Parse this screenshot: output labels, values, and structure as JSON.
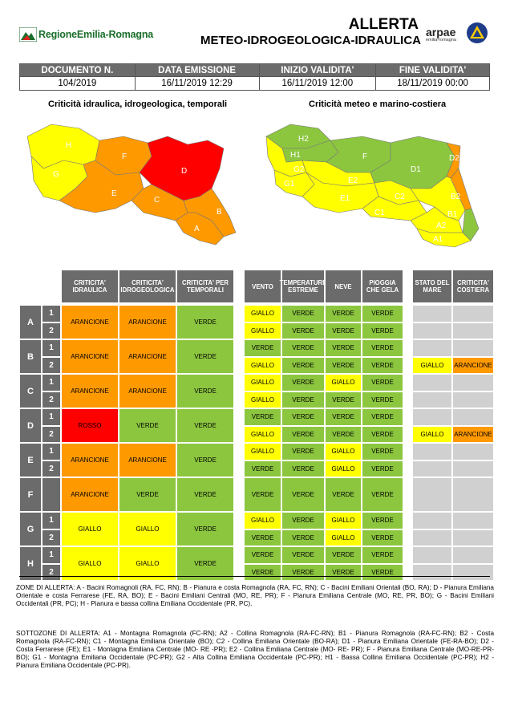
{
  "header": {
    "region_logo_text": "RegioneEmilia-Romagna",
    "title_line1": "ALLERTA",
    "title_line2": "METEO-IDROGEOLOGICA-IDRAULICA",
    "arpae_text": "arpae",
    "arpae_sub": "emilia-romagna"
  },
  "doc_info": {
    "headers": [
      "DOCUMENTO N.",
      "DATA EMISSIONE",
      "INIZIO VALIDITA'",
      "FINE VALIDITA'"
    ],
    "values": [
      "104/2019",
      "16/11/2019 12:29",
      "16/11/2019 12:00",
      "18/11/2019 00:00"
    ]
  },
  "maps": {
    "left_title": "Criticità idraulica, idrogeologica, temporali",
    "right_title": "Criticità meteo e marino-costiera",
    "left_labels": [
      "H",
      "F",
      "D",
      "G",
      "E",
      "C",
      "B",
      "A"
    ],
    "right_labels": [
      "H2",
      "H1",
      "F",
      "D2",
      "G2",
      "G1",
      "E2",
      "D1",
      "E1",
      "C2",
      "C1",
      "B2",
      "B1",
      "A2",
      "A1"
    ]
  },
  "colors": {
    "giallo": "#ffff00",
    "verde": "#8cc63f",
    "arancione": "#ff9900",
    "rosso": "#ff0000",
    "header_gray": "#6b6b6b",
    "empty_gray": "#d0d0d0"
  },
  "table": {
    "headers_group1": [
      "CRITICITA' IDRAULICA",
      "CRITICITA' IDROGEOLOGICA",
      "CRITICITA' PER TEMPORALI"
    ],
    "headers_group2": [
      "VENTO",
      "TEMPERATURE ESTREME",
      "NEVE",
      "PIOGGIA CHE GELA"
    ],
    "headers_group3": [
      "STATO DEL MARE",
      "CRITICITA' COSTIERA"
    ],
    "zones": [
      {
        "zone": "A",
        "sub": [
          "1",
          "2"
        ],
        "group1": [
          "ARANCIONE",
          "ARANCIONE",
          "VERDE"
        ],
        "group2": [
          [
            "GIALLO",
            "VERDE",
            "VERDE",
            "VERDE"
          ],
          [
            "GIALLO",
            "VERDE",
            "VERDE",
            "VERDE"
          ]
        ],
        "group3": [
          [
            "",
            ""
          ],
          [
            "",
            ""
          ]
        ]
      },
      {
        "zone": "B",
        "sub": [
          "1",
          "2"
        ],
        "group1": [
          "ARANCIONE",
          "ARANCIONE",
          "VERDE"
        ],
        "group2": [
          [
            "VERDE",
            "VERDE",
            "VERDE",
            "VERDE"
          ],
          [
            "GIALLO",
            "VERDE",
            "VERDE",
            "VERDE"
          ]
        ],
        "group3": [
          [
            "",
            ""
          ],
          [
            "GIALLO",
            "ARANCIONE"
          ]
        ]
      },
      {
        "zone": "C",
        "sub": [
          "1",
          "2"
        ],
        "group1": [
          "ARANCIONE",
          "ARANCIONE",
          "VERDE"
        ],
        "group2": [
          [
            "GIALLO",
            "VERDE",
            "GIALLO",
            "VERDE"
          ],
          [
            "GIALLO",
            "VERDE",
            "VERDE",
            "VERDE"
          ]
        ],
        "group3": [
          [
            "",
            ""
          ],
          [
            "",
            ""
          ]
        ]
      },
      {
        "zone": "D",
        "sub": [
          "1",
          "2"
        ],
        "group1": [
          "ROSSO",
          "VERDE",
          "VERDE"
        ],
        "group2": [
          [
            "VERDE",
            "VERDE",
            "VERDE",
            "VERDE"
          ],
          [
            "GIALLO",
            "VERDE",
            "VERDE",
            "VERDE"
          ]
        ],
        "group3": [
          [
            "",
            ""
          ],
          [
            "GIALLO",
            "ARANCIONE"
          ]
        ]
      },
      {
        "zone": "E",
        "sub": [
          "1",
          "2"
        ],
        "group1": [
          "ARANCIONE",
          "ARANCIONE",
          "VERDE"
        ],
        "group2": [
          [
            "GIALLO",
            "VERDE",
            "GIALLO",
            "VERDE"
          ],
          [
            "VERDE",
            "VERDE",
            "GIALLO",
            "VERDE"
          ]
        ],
        "group3": [
          [
            "",
            ""
          ],
          [
            "",
            ""
          ]
        ]
      },
      {
        "zone": "F",
        "sub": [],
        "group1": [
          "ARANCIONE",
          "VERDE",
          "VERDE"
        ],
        "group2": [
          [
            "VERDE",
            "VERDE",
            "VERDE",
            "VERDE"
          ]
        ],
        "group3": [
          [
            "",
            ""
          ]
        ]
      },
      {
        "zone": "G",
        "sub": [
          "1",
          "2"
        ],
        "group1": [
          "GIALLO",
          "GIALLO",
          "VERDE"
        ],
        "group2": [
          [
            "GIALLO",
            "VERDE",
            "GIALLO",
            "VERDE"
          ],
          [
            "VERDE",
            "VERDE",
            "GIALLO",
            "VERDE"
          ]
        ],
        "group3": [
          [
            "",
            ""
          ],
          [
            "",
            ""
          ]
        ]
      },
      {
        "zone": "H",
        "sub": [
          "1",
          "2"
        ],
        "group1": [
          "GIALLO",
          "GIALLO",
          "VERDE"
        ],
        "group2": [
          [
            "VERDE",
            "VERDE",
            "VERDE",
            "VERDE"
          ],
          [
            "VERDE",
            "VERDE",
            "VERDE",
            "VERDE"
          ]
        ],
        "group3": [
          [
            "",
            ""
          ],
          [
            "",
            ""
          ]
        ]
      }
    ]
  },
  "notes": {
    "zones_text": "ZONE DI ALLERTA: A - Bacini Romagnoli (RA, FC, RN); B - Pianura e costa Romagnola (RA, FC, RN); C - Bacini Emiliani Orientali (BO, RA); D - Pianura Emiliana Orientale e costa Ferrarese (FE, RA, BO); E - Bacini Emiliani Centrali (MO, RE, PR); F - Pianura Emiliana Centrale (MO, RE, PR, BO); G - Bacini Emiliani Occidentali (PR, PC); H - Pianura e bassa collina Emiliana Occidentale (PR, PC).",
    "subzones_text": "SOTTOZONE DI ALLERTA: A1 - Montagna Romagnola (FC-RN); A2 - Collina Romagnola (RA-FC-RN); B1 - Pianura Romagnola (RA-FC-RN); B2 - Costa Romagnola (RA-FC-RN); C1 - Montagna Emiliana Orientale (BO); C2 - Collina Emiliana Orientale (BO-RA); D1 - Pianura Emiliana Orientale (FE-RA-BO); D2 - Costa Ferrarese (FE); E1 - Montagna Emiliana Centrale (MO- RE -PR); E2 - Collina Emiliana Centrale (MO- RE- PR); F - Pianura Emiliana Centrale (MO-RE-PR-BO); G1 - Montagna Emiliana Occidentale (PC-PR); G2 - Alta Collina Emiliana Occidentale (PC-PR); H1 - Bassa Collina Emiliana Occidentale (PC-PR); H2 - Pianura Emiliana Occidentale (PC-PR)."
  }
}
